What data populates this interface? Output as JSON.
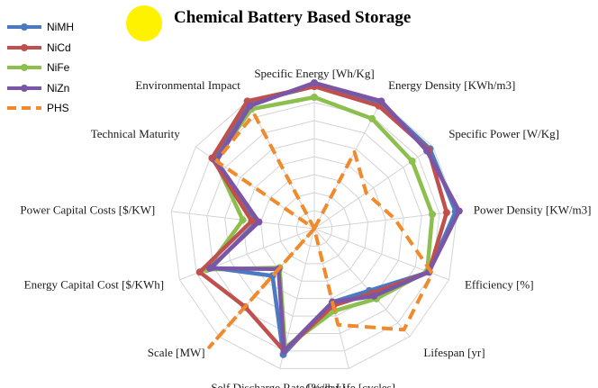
{
  "chart_data": {
    "type": "radar",
    "title": "Chemical Battery Based Storage",
    "axes": [
      "Specific Energy [Wh/Kg]",
      "Energy Density [KWh/m3]",
      "Specific Power [W/Kg]",
      "Power Density [KW/m3]",
      "Efficiency [%]",
      "Lifespan [yr]",
      "Cycle Life [cycles]",
      "Self Discharge Rate [%/day]",
      "Scale [MW]",
      "Energy Capital Cost [$/KWh]",
      "Power Capital Costs [$/KW]",
      "Technical Maturity",
      "Environmental Impact"
    ],
    "rings": 8,
    "range": [
      0,
      8
    ],
    "legend_position": "top-left",
    "series": [
      {
        "name": "NiMH",
        "color": "#4a7ac0",
        "dashed": false,
        "marker": true,
        "values": [
          7.9,
          7.9,
          7.8,
          7.9,
          6.8,
          4.6,
          4.2,
          7.2,
          3.5,
          6.1,
          3.2,
          6.8,
          7.9
        ]
      },
      {
        "name": "NiCd",
        "color": "#c0504d",
        "dashed": false,
        "marker": true,
        "values": [
          7.9,
          7.7,
          7.7,
          7.4,
          6.8,
          4.8,
          4.4,
          7.0,
          5.8,
          6.8,
          3.5,
          6.9,
          8.0
        ]
      },
      {
        "name": "NiFe",
        "color": "#8cbf4e",
        "dashed": false,
        "marker": true,
        "values": [
          7.3,
          6.9,
          6.6,
          6.6,
          6.7,
          5.2,
          4.7,
          6.8,
          2.9,
          6.4,
          4.0,
          6.7,
          7.5
        ]
      },
      {
        "name": "NiZn",
        "color": "#7b56a6",
        "dashed": false,
        "marker": true,
        "values": [
          8.1,
          8.0,
          7.6,
          8.1,
          6.8,
          5.0,
          4.2,
          7.0,
          3.0,
          6.2,
          3.1,
          6.6,
          7.7
        ]
      },
      {
        "name": "PHS",
        "color": "#f08a2c",
        "dashed": true,
        "marker": false,
        "values": [
          0.0,
          4.8,
          3.5,
          4.5,
          7.0,
          7.5,
          5.5,
          0.0,
          8.8,
          0.0,
          0.0,
          6.6,
          7.2
        ]
      }
    ]
  },
  "sun_color": "#fff200"
}
